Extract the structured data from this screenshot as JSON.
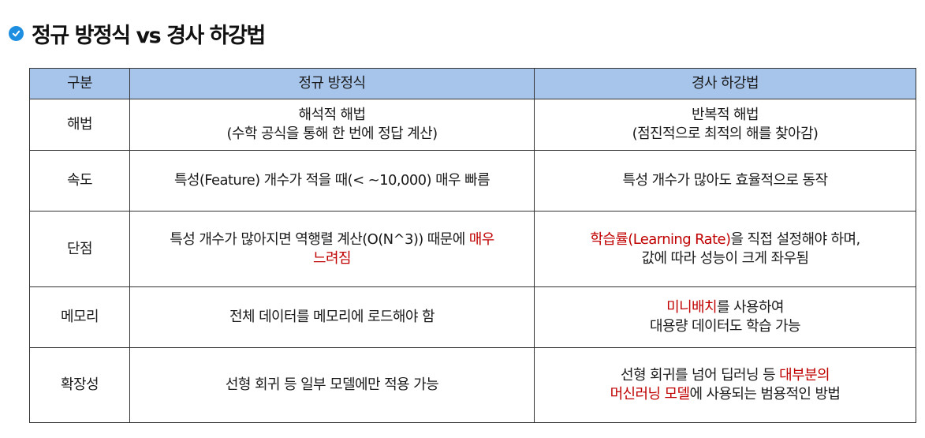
{
  "title": "정규 방정식 vs 경사 하강법",
  "colors": {
    "header_bg": "#a7c5eb",
    "highlight": "#c00000",
    "check_icon": "#1e8fe0"
  },
  "table": {
    "headers": [
      "구분",
      "정규 방정식",
      "경사 하강법"
    ],
    "rows": [
      {
        "label": "해법",
        "normal": {
          "line1": "해석적 해법",
          "line2": "(수학 공식을 통해 한 번에 정답 계산)"
        },
        "gradient": {
          "line1": "반복적 해법",
          "line2": "(점진적으로 최적의 해를 찾아감)"
        }
      },
      {
        "label": "속도",
        "normal": {
          "text": "특성(Feature) 개수가 적을 때(< ~10,000) 매우 빠름"
        },
        "gradient": {
          "text": "특성 개수가 많아도 효율적으로 동작"
        }
      },
      {
        "label": "단점",
        "normal": {
          "text_a": "특성 개수가 많아지면 역행렬 계산(O(N^3)) 때문에 ",
          "hl_a": "매우",
          "hl_b": "느려짐"
        },
        "gradient": {
          "hl": "학습률(Learning Rate)",
          "text_a": "을 직접 설정해야 하며,",
          "text_b": "값에 따라 성능이 크게 좌우됨"
        }
      },
      {
        "label": "메모리",
        "normal": {
          "text": "전체 데이터를 메모리에 로드해야 함"
        },
        "gradient": {
          "hl": "미니배치",
          "text_a": "를 사용하여",
          "text_b": "대용량 데이터도 학습 가능"
        }
      },
      {
        "label": "확장성",
        "normal": {
          "text": "선형 회귀 등 일부 모델에만 적용 가능"
        },
        "gradient": {
          "text_a": "선형 회귀를 넘어 딥러닝 등 ",
          "hl_a": "대부분의",
          "hl_b": "머신러닝 모델",
          "text_b": "에 사용되는 범용적인 방법"
        }
      }
    ]
  }
}
